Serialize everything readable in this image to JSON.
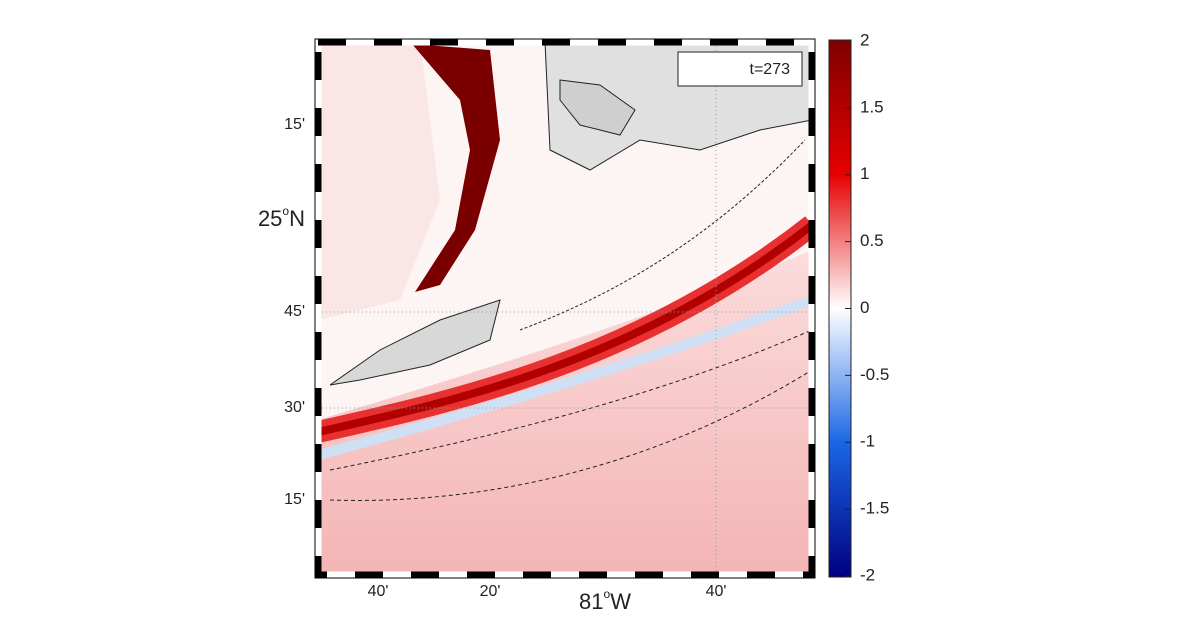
{
  "map": {
    "annotation": "t=273",
    "lat_labels": [
      {
        "text": "15'"
      },
      {
        "text": "25",
        "sup": "o",
        "suffix": "N"
      },
      {
        "text": "45'"
      },
      {
        "text": "30'"
      },
      {
        "text": "15'"
      }
    ],
    "lon_labels": [
      {
        "text": "40'"
      },
      {
        "text": "20'"
      },
      {
        "text": "81",
        "sup": "o",
        "suffix": "W"
      },
      {
        "text": "40'"
      }
    ]
  },
  "colorbar": {
    "lim": [
      -2,
      2
    ],
    "ticks": [
      2,
      1.5,
      1,
      0.5,
      0,
      -0.5,
      -1,
      -1.5,
      -2
    ]
  }
}
